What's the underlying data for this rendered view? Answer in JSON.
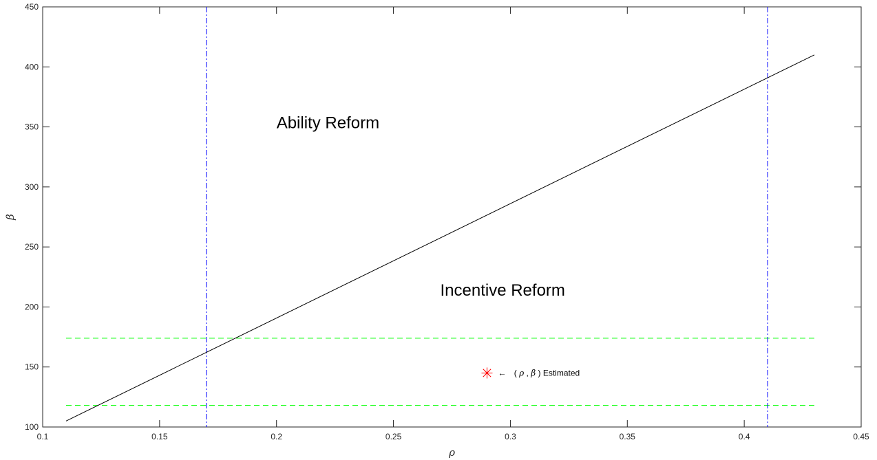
{
  "chart_data": {
    "type": "line",
    "title": "",
    "xlabel": "ρ",
    "ylabel": "β",
    "xlim": [
      0.1,
      0.45
    ],
    "ylim": [
      100,
      450
    ],
    "xticks": [
      "0.1",
      "0.15",
      "0.2",
      "0.25",
      "0.3",
      "0.35",
      "0.4",
      "0.45"
    ],
    "yticks": [
      "100",
      "150",
      "200",
      "250",
      "300",
      "350",
      "400",
      "450"
    ],
    "grid": false,
    "colors": {
      "threshold_line": "#000000",
      "vertical_bounds": "#0000ff",
      "horizontal_bounds": "#00ff00",
      "estimate_marker": "#ff0000"
    },
    "series": [
      {
        "style": "solid",
        "x": [
          0.11,
          0.43
        ],
        "y": [
          105,
          410
        ]
      }
    ],
    "vertical_lines": [
      {
        "style": "dash-dot",
        "x": 0.17
      },
      {
        "style": "dash-dot",
        "x": 0.41
      }
    ],
    "horizontal_lines": [
      {
        "style": "dashed",
        "y": 174,
        "xrange": [
          0.11,
          0.43
        ]
      },
      {
        "style": "dashed",
        "y": 118,
        "xrange": [
          0.11,
          0.43
        ]
      }
    ],
    "estimate_point": {
      "x": 0.29,
      "y": 145,
      "marker": "asterisk"
    },
    "annotations": [
      {
        "text": "Ability Reform",
        "x": 0.2,
        "y": 350
      },
      {
        "text": "Incentive Reform",
        "x": 0.27,
        "y": 210
      }
    ],
    "estimate_label": {
      "arrow": "←",
      "open": "(",
      "rho": "ρ",
      "comma": ", ",
      "beta": "β",
      "close": ")",
      "word": " Estimated"
    }
  }
}
